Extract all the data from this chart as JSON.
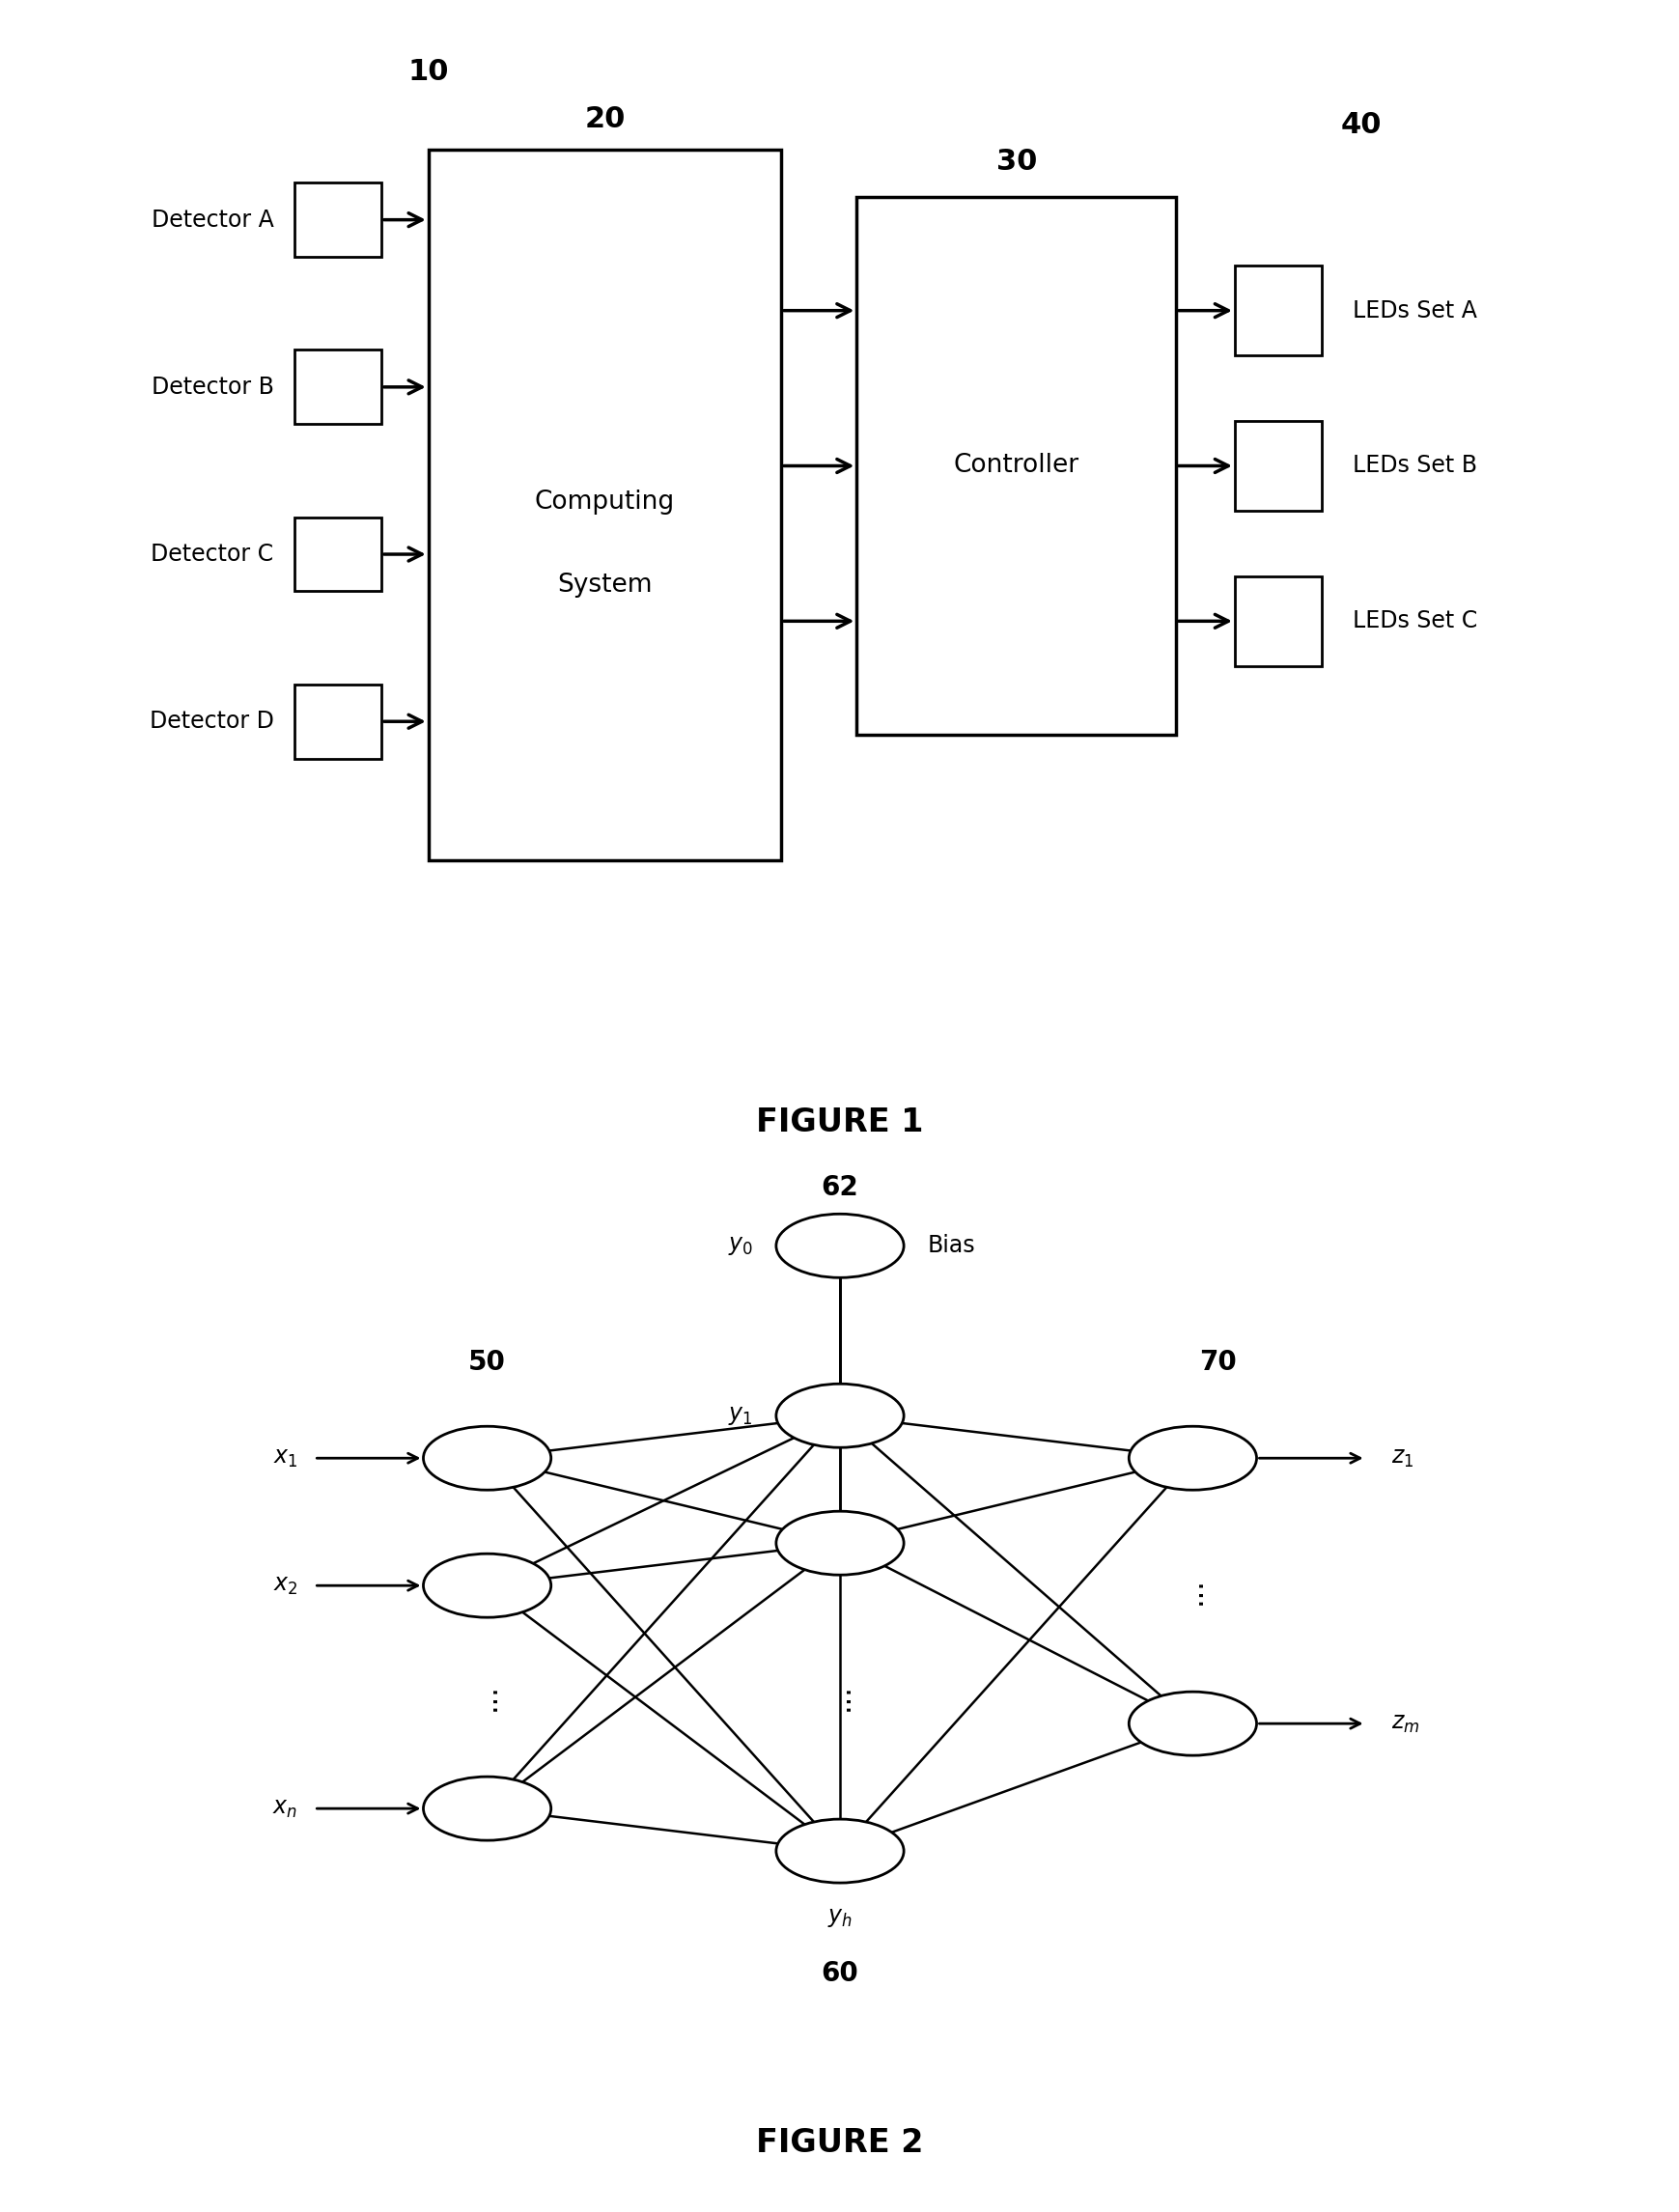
{
  "fig1": {
    "title": "FIGURE 1",
    "label_10": "10",
    "label_20": "20",
    "label_30": "30",
    "label_40": "40",
    "computing_system_text": [
      "Computing",
      "System"
    ],
    "controller_text": "Controller",
    "detectors": [
      "Detector A",
      "Detector B",
      "Detector C",
      "Detector D"
    ],
    "led_sets": [
      "LEDs Set A",
      "LEDs Set B",
      "LEDs Set C"
    ],
    "bg_color": "#ffffff",
    "box_color": "#ffffff",
    "box_edge": "#000000",
    "text_color": "#000000"
  },
  "fig2": {
    "title": "FIGURE 2",
    "label_50": "50",
    "label_60": "60",
    "label_62": "62",
    "label_70": "70",
    "bias_label": "Bias",
    "y0_label": "y0",
    "y1_label": "y1",
    "yh_label": "yh",
    "x1_label": "x1",
    "x2_label": "x2",
    "xn_label": "xn",
    "z1_label": "z1",
    "zm_label": "zm",
    "bg_color": "#ffffff",
    "node_color": "#ffffff",
    "node_edge": "#000000"
  }
}
